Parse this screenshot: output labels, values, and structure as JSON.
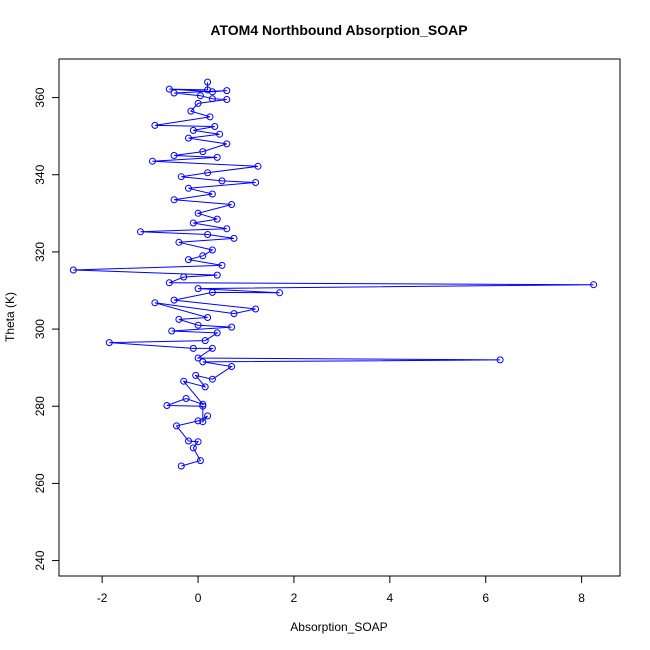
{
  "chart_data": {
    "type": "line",
    "title": "ATOM4 Northbound Absorption_SOAP",
    "xlabel": "Absorption_SOAP",
    "ylabel": "Theta (K)",
    "xlim": [
      -2.9,
      8.8
    ],
    "ylim": [
      236,
      370
    ],
    "xticks": [
      -2,
      0,
      2,
      4,
      6,
      8
    ],
    "yticks": [
      240,
      260,
      280,
      300,
      320,
      340,
      360
    ],
    "grid": false,
    "legend": "none",
    "marker": "open-circle",
    "series": [
      {
        "color": "#0000ff",
        "points": [
          [
            -0.35,
            264.5
          ],
          [
            0.05,
            265.9
          ],
          [
            -0.1,
            269.2
          ],
          [
            0.0,
            270.8
          ],
          [
            -0.2,
            271.0
          ],
          [
            -0.45,
            274.9
          ],
          [
            0.0,
            276.2
          ],
          [
            0.2,
            277.5
          ],
          [
            0.1,
            276.0
          ],
          [
            0.1,
            280.0
          ],
          [
            -0.65,
            280.2
          ],
          [
            -0.25,
            282.0
          ],
          [
            0.1,
            280.5
          ],
          [
            -0.3,
            286.5
          ],
          [
            0.15,
            285.0
          ],
          [
            -0.05,
            288.0
          ],
          [
            0.3,
            287.0
          ],
          [
            0.7,
            290.3
          ],
          [
            0.1,
            291.5
          ],
          [
            6.3,
            292.0
          ],
          [
            0.0,
            292.5
          ],
          [
            0.3,
            295.0
          ],
          [
            -0.1,
            295.0
          ],
          [
            -1.85,
            296.5
          ],
          [
            0.15,
            297.0
          ],
          [
            0.4,
            299.0
          ],
          [
            -0.55,
            299.5
          ],
          [
            0.7,
            300.5
          ],
          [
            0.0,
            301.0
          ],
          [
            -0.4,
            302.5
          ],
          [
            0.2,
            303.0
          ],
          [
            -0.9,
            306.8
          ],
          [
            0.75,
            304.0
          ],
          [
            1.2,
            305.2
          ],
          [
            -0.5,
            307.5
          ],
          [
            0.3,
            309.5
          ],
          [
            1.7,
            309.4
          ],
          [
            0.0,
            310.5
          ],
          [
            8.25,
            311.5
          ],
          [
            -0.6,
            312.0
          ],
          [
            -0.3,
            313.5
          ],
          [
            0.4,
            314.0
          ],
          [
            -2.6,
            315.3
          ],
          [
            0.5,
            316.5
          ],
          [
            -0.2,
            318.0
          ],
          [
            0.1,
            319.0
          ],
          [
            0.3,
            320.5
          ],
          [
            -0.4,
            322.5
          ],
          [
            0.75,
            323.5
          ],
          [
            0.2,
            324.5
          ],
          [
            -1.2,
            325.2
          ],
          [
            0.6,
            326.0
          ],
          [
            -0.1,
            327.5
          ],
          [
            0.4,
            328.5
          ],
          [
            0.0,
            330.0
          ],
          [
            0.7,
            332.3
          ],
          [
            -0.5,
            333.5
          ],
          [
            0.3,
            335.0
          ],
          [
            -0.2,
            336.5
          ],
          [
            1.2,
            338.0
          ],
          [
            0.5,
            338.4
          ],
          [
            -0.35,
            339.5
          ],
          [
            0.2,
            340.5
          ],
          [
            1.25,
            342.2
          ],
          [
            -0.95,
            343.5
          ],
          [
            0.4,
            344.5
          ],
          [
            -0.5,
            345.0
          ],
          [
            0.1,
            346.0
          ],
          [
            0.6,
            348.0
          ],
          [
            -0.2,
            349.5
          ],
          [
            0.45,
            350.5
          ],
          [
            -0.1,
            351.5
          ],
          [
            0.35,
            352.5
          ],
          [
            -0.9,
            352.8
          ],
          [
            0.25,
            355.0
          ],
          [
            -0.15,
            356.5
          ],
          [
            0.0,
            358.5
          ],
          [
            0.6,
            359.5
          ],
          [
            0.3,
            359.7
          ],
          [
            0.05,
            360.5
          ],
          [
            -0.5,
            361.2
          ],
          [
            0.6,
            361.8
          ],
          [
            0.3,
            361.5
          ],
          [
            -0.6,
            362.2
          ],
          [
            0.2,
            362.0
          ],
          [
            0.2,
            364.0
          ]
        ]
      }
    ]
  }
}
